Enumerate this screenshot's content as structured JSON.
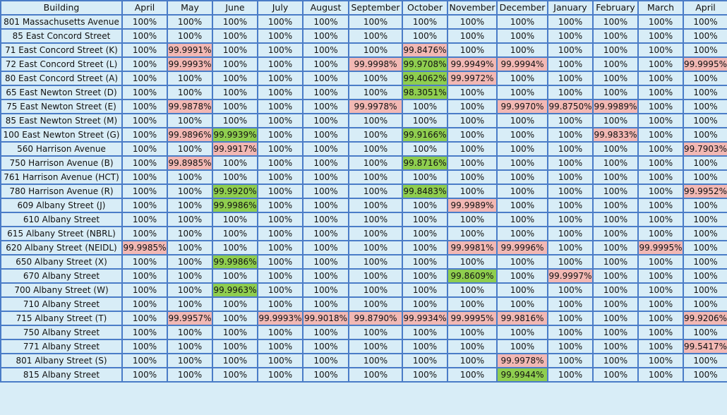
{
  "headers": [
    "Building",
    "April",
    "May",
    "June",
    "July",
    "August",
    "September",
    "October",
    "November",
    "December",
    "January",
    "February",
    "March",
    "April"
  ],
  "colors": {
    "background": "#d8edf7",
    "grid": "#4a7cc7",
    "below_100": "#f2b8b4",
    "improved": "#8fce4f"
  },
  "rows": [
    {
      "building": "801 Massachusetts Avenue",
      "values": [
        "100%",
        "100%",
        "100%",
        "100%",
        "100%",
        "100%",
        "100%",
        "100%",
        "100%",
        "100%",
        "100%",
        "100%",
        "100%"
      ],
      "marks": [
        "",
        "",
        "",
        "",
        "",
        "",
        "",
        "",
        "",
        "",
        "",
        "",
        ""
      ]
    },
    {
      "building": "85 East Concord Street",
      "values": [
        "100%",
        "100%",
        "100%",
        "100%",
        "100%",
        "100%",
        "100%",
        "100%",
        "100%",
        "100%",
        "100%",
        "100%",
        "100%"
      ],
      "marks": [
        "",
        "",
        "",
        "",
        "",
        "",
        "",
        "",
        "",
        "",
        "",
        "",
        ""
      ]
    },
    {
      "building": "71 East Concord Street (K)",
      "values": [
        "100%",
        "99.9991%",
        "100%",
        "100%",
        "100%",
        "100%",
        "99.8476%",
        "100%",
        "100%",
        "100%",
        "100%",
        "100%",
        "100%"
      ],
      "marks": [
        "",
        "pink",
        "",
        "",
        "",
        "",
        "pink",
        "",
        "",
        "",
        "",
        "",
        ""
      ]
    },
    {
      "building": "72 East Concord Street (L)",
      "values": [
        "100%",
        "99.9993%",
        "100%",
        "100%",
        "100%",
        "99.9998%",
        "99.9708%",
        "99.9949%",
        "99.9994%",
        "100%",
        "100%",
        "100%",
        "99.9995%"
      ],
      "marks": [
        "",
        "pink",
        "",
        "",
        "",
        "pink",
        "green",
        "pink",
        "pink",
        "",
        "",
        "",
        "pink"
      ]
    },
    {
      "building": "80 East Concord Street (A)",
      "values": [
        "100%",
        "100%",
        "100%",
        "100%",
        "100%",
        "100%",
        "99.4062%",
        "99.9972%",
        "100%",
        "100%",
        "100%",
        "100%",
        "100%"
      ],
      "marks": [
        "",
        "",
        "",
        "",
        "",
        "",
        "green",
        "pink",
        "",
        "",
        "",
        "",
        ""
      ]
    },
    {
      "building": "65 East Newton Street (D)",
      "values": [
        "100%",
        "100%",
        "100%",
        "100%",
        "100%",
        "100%",
        "98.3051%",
        "100%",
        "100%",
        "100%",
        "100%",
        "100%",
        "100%"
      ],
      "marks": [
        "",
        "",
        "",
        "",
        "",
        "",
        "green",
        "",
        "",
        "",
        "",
        "",
        ""
      ]
    },
    {
      "building": "75 East Newton Street (E)",
      "values": [
        "100%",
        "99.9878%",
        "100%",
        "100%",
        "100%",
        "99.9978%",
        "100%",
        "100%",
        "99.9970%",
        "99.8750%",
        "99.9989%",
        "100%",
        "100%"
      ],
      "marks": [
        "",
        "pink",
        "",
        "",
        "",
        "pink",
        "",
        "",
        "pink",
        "pink",
        "pink",
        "",
        ""
      ]
    },
    {
      "building": "85 East Newton Street (M)",
      "values": [
        "100%",
        "100%",
        "100%",
        "100%",
        "100%",
        "100%",
        "100%",
        "100%",
        "100%",
        "100%",
        "100%",
        "100%",
        "100%"
      ],
      "marks": [
        "",
        "",
        "",
        "",
        "",
        "",
        "",
        "",
        "",
        "",
        "",
        "",
        ""
      ]
    },
    {
      "building": "100 East Newton Street (G)",
      "values": [
        "100%",
        "99.9896%",
        "99.9939%",
        "100%",
        "100%",
        "100%",
        "99.9166%",
        "100%",
        "100%",
        "100%",
        "99.9833%",
        "100%",
        "100%"
      ],
      "marks": [
        "",
        "pink",
        "green",
        "",
        "",
        "",
        "green",
        "",
        "",
        "",
        "pink",
        "",
        ""
      ]
    },
    {
      "building": "560 Harrison Avenue",
      "values": [
        "100%",
        "100%",
        "99.9917%",
        "100%",
        "100%",
        "100%",
        "100%",
        "100%",
        "100%",
        "100%",
        "100%",
        "100%",
        "99.7903%"
      ],
      "marks": [
        "",
        "",
        "pink",
        "",
        "",
        "",
        "",
        "",
        "",
        "",
        "",
        "",
        "pink"
      ]
    },
    {
      "building": "750 Harrison Avenue (B)",
      "values": [
        "100%",
        "99.8985%",
        "100%",
        "100%",
        "100%",
        "100%",
        "99.8716%",
        "100%",
        "100%",
        "100%",
        "100%",
        "100%",
        "100%"
      ],
      "marks": [
        "",
        "pink",
        "",
        "",
        "",
        "",
        "green",
        "",
        "",
        "",
        "",
        "",
        ""
      ]
    },
    {
      "building": "761 Harrison Avenue (HCT)",
      "values": [
        "100%",
        "100%",
        "100%",
        "100%",
        "100%",
        "100%",
        "100%",
        "100%",
        "100%",
        "100%",
        "100%",
        "100%",
        "100%"
      ],
      "marks": [
        "",
        "",
        "",
        "",
        "",
        "",
        "",
        "",
        "",
        "",
        "",
        "",
        ""
      ]
    },
    {
      "building": "780 Harrison Avenue (R)",
      "values": [
        "100%",
        "100%",
        "99.9920%",
        "100%",
        "100%",
        "100%",
        "99.8483%",
        "100%",
        "100%",
        "100%",
        "100%",
        "100%",
        "99.9952%"
      ],
      "marks": [
        "",
        "",
        "green",
        "",
        "",
        "",
        "green",
        "",
        "",
        "",
        "",
        "",
        "pink"
      ]
    },
    {
      "building": "609 Albany Street (J)",
      "values": [
        "100%",
        "100%",
        "99.9986%",
        "100%",
        "100%",
        "100%",
        "100%",
        "99.9989%",
        "100%",
        "100%",
        "100%",
        "100%",
        "100%"
      ],
      "marks": [
        "",
        "",
        "green",
        "",
        "",
        "",
        "",
        "pink",
        "",
        "",
        "",
        "",
        ""
      ]
    },
    {
      "building": "610 Albany Street",
      "values": [
        "100%",
        "100%",
        "100%",
        "100%",
        "100%",
        "100%",
        "100%",
        "100%",
        "100%",
        "100%",
        "100%",
        "100%",
        "100%"
      ],
      "marks": [
        "",
        "",
        "",
        "",
        "",
        "",
        "",
        "",
        "",
        "",
        "",
        "",
        ""
      ]
    },
    {
      "building": "615 Albany Street (NBRL)",
      "values": [
        "100%",
        "100%",
        "100%",
        "100%",
        "100%",
        "100%",
        "100%",
        "100%",
        "100%",
        "100%",
        "100%",
        "100%",
        "100%"
      ],
      "marks": [
        "",
        "",
        "",
        "",
        "",
        "",
        "",
        "",
        "",
        "",
        "",
        "",
        ""
      ]
    },
    {
      "building": "620 Albany Street (NEIDL)",
      "values": [
        "99.9985%",
        "100%",
        "100%",
        "100%",
        "100%",
        "100%",
        "100%",
        "99.9981%",
        "99.9996%",
        "100%",
        "100%",
        "99.9995%",
        "100%"
      ],
      "marks": [
        "pink",
        "",
        "",
        "",
        "",
        "",
        "",
        "pink",
        "pink",
        "",
        "",
        "pink",
        ""
      ]
    },
    {
      "building": "650 Albany Street (X)",
      "values": [
        "100%",
        "100%",
        "99.9986%",
        "100%",
        "100%",
        "100%",
        "100%",
        "100%",
        "100%",
        "100%",
        "100%",
        "100%",
        "100%"
      ],
      "marks": [
        "",
        "",
        "green",
        "",
        "",
        "",
        "",
        "",
        "",
        "",
        "",
        "",
        ""
      ]
    },
    {
      "building": "670 Albany Street",
      "values": [
        "100%",
        "100%",
        "100%",
        "100%",
        "100%",
        "100%",
        "100%",
        "99.8609%",
        "100%",
        "99.9997%",
        "100%",
        "100%",
        "100%"
      ],
      "marks": [
        "",
        "",
        "",
        "",
        "",
        "",
        "",
        "green",
        "",
        "pink",
        "",
        "",
        ""
      ]
    },
    {
      "building": "700 Albany Street (W)",
      "values": [
        "100%",
        "100%",
        "99.9963%",
        "100%",
        "100%",
        "100%",
        "100%",
        "100%",
        "100%",
        "100%",
        "100%",
        "100%",
        "100%"
      ],
      "marks": [
        "",
        "",
        "green",
        "",
        "",
        "",
        "",
        "",
        "",
        "",
        "",
        "",
        ""
      ]
    },
    {
      "building": "710 Albany Street",
      "values": [
        "100%",
        "100%",
        "100%",
        "100%",
        "100%",
        "100%",
        "100%",
        "100%",
        "100%",
        "100%",
        "100%",
        "100%",
        "100%"
      ],
      "marks": [
        "",
        "",
        "",
        "",
        "",
        "",
        "",
        "",
        "",
        "",
        "",
        "",
        ""
      ]
    },
    {
      "building": "715 Albany Street (T)",
      "values": [
        "100%",
        "99.9957%",
        "100%",
        "99.9993%",
        "99.9018%",
        "99.8790%",
        "99.9934%",
        "99.9995%",
        "99.9816%",
        "100%",
        "100%",
        "100%",
        "99.9206%"
      ],
      "marks": [
        "",
        "pink",
        "",
        "pink",
        "pink",
        "pink",
        "pink",
        "pink",
        "pink",
        "",
        "",
        "",
        "pink"
      ]
    },
    {
      "building": "750 Albany Street",
      "values": [
        "100%",
        "100%",
        "100%",
        "100%",
        "100%",
        "100%",
        "100%",
        "100%",
        "100%",
        "100%",
        "100%",
        "100%",
        "100%"
      ],
      "marks": [
        "",
        "",
        "",
        "",
        "",
        "",
        "",
        "",
        "",
        "",
        "",
        "",
        ""
      ]
    },
    {
      "building": "771 Albany Street",
      "values": [
        "100%",
        "100%",
        "100%",
        "100%",
        "100%",
        "100%",
        "100%",
        "100%",
        "100%",
        "100%",
        "100%",
        "100%",
        "99.5417%"
      ],
      "marks": [
        "",
        "",
        "",
        "",
        "",
        "",
        "",
        "",
        "",
        "",
        "",
        "",
        "pink"
      ]
    },
    {
      "building": "801 Albany Street (S)",
      "values": [
        "100%",
        "100%",
        "100%",
        "100%",
        "100%",
        "100%",
        "100%",
        "100%",
        "99.9978%",
        "100%",
        "100%",
        "100%",
        "100%"
      ],
      "marks": [
        "",
        "",
        "",
        "",
        "",
        "",
        "",
        "",
        "pink",
        "",
        "",
        "",
        ""
      ]
    },
    {
      "building": "815 Albany Street",
      "values": [
        "100%",
        "100%",
        "100%",
        "100%",
        "100%",
        "100%",
        "100%",
        "100%",
        "99.9944%",
        "100%",
        "100%",
        "100%",
        "100%"
      ],
      "marks": [
        "",
        "",
        "",
        "",
        "",
        "",
        "",
        "",
        "green",
        "",
        "",
        "",
        ""
      ]
    }
  ]
}
